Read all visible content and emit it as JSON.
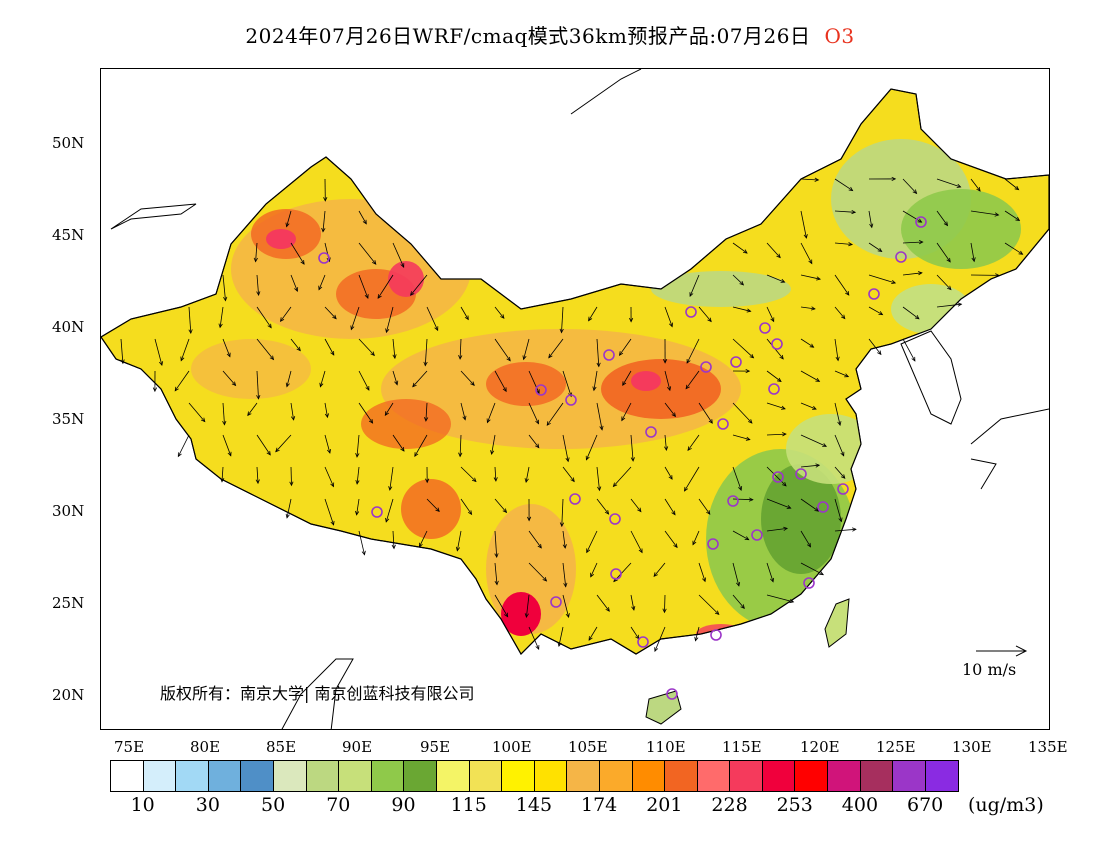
{
  "title": {
    "main": "2024年07月26日WRF/cmaq模式36km预报产品:07月26日",
    "species": "O3"
  },
  "axes": {
    "y_labels": [
      "50N",
      "45N",
      "40N",
      "35N",
      "30N",
      "25N",
      "20N"
    ],
    "x_labels": [
      "75E",
      "80E",
      "85E",
      "90E",
      "95E",
      "100E",
      "105E",
      "110E",
      "115E",
      "120E",
      "125E",
      "130E",
      "135E"
    ]
  },
  "copyright": "版权所有：南京大学| 南京创蓝科技有限公司",
  "wind_key": "10 m/s",
  "colorbar": {
    "colors": [
      "#ffffff",
      "#d4eefb",
      "#a2d9f5",
      "#6fb0dd",
      "#4f8fc7",
      "#dbe8bd",
      "#bcd881",
      "#c7e07a",
      "#8fc94a",
      "#6aa733",
      "#f4f466",
      "#f2e255",
      "#fff200",
      "#ffe100",
      "#f5b547",
      "#fbaa2a",
      "#ff8c00",
      "#f26522",
      "#ff6b6b",
      "#f53a5c",
      "#f0003c",
      "#ff0000",
      "#d0147a",
      "#a62f5e",
      "#9b36c8",
      "#8a2be2"
    ],
    "tick_labels": [
      "10",
      "30",
      "50",
      "70",
      "90",
      "115",
      "145",
      "174",
      "201",
      "228",
      "253",
      "400",
      "670"
    ],
    "unit": "(ug/m3)"
  }
}
